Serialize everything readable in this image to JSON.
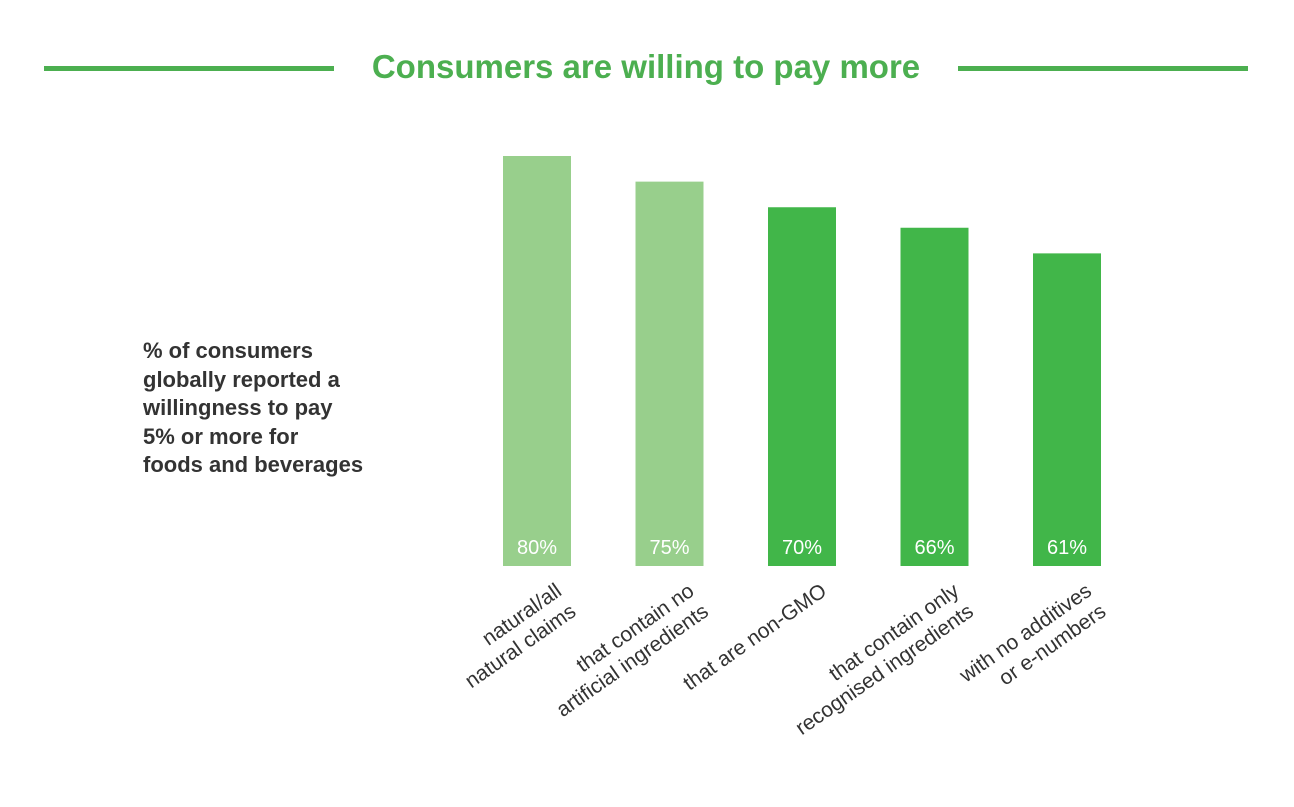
{
  "chart_data": {
    "type": "bar",
    "title": "Consumers are willing to pay more",
    "ylabel_lines": [
      "% of consumers",
      "globally reported a",
      "willingness to pay",
      "5% or more for",
      "foods and beverages"
    ],
    "categories": [
      [
        "natural/all",
        "natural claims"
      ],
      [
        "that contain no",
        "artificial ingredients"
      ],
      [
        "that are non-GMO"
      ],
      [
        "that contain only",
        "recognised ingredients"
      ],
      [
        "with no additives",
        "or e-numbers"
      ]
    ],
    "values": [
      80,
      75,
      70,
      66,
      61
    ],
    "value_labels": [
      "80%",
      "75%",
      "70%",
      "66%",
      "61%"
    ],
    "ylim": [
      0,
      100
    ],
    "bar_colors": [
      "#98cf8c",
      "#98cf8c",
      "#41b649",
      "#41b649",
      "#41b649"
    ],
    "title_color": "#4caf50",
    "grid": false,
    "legend": "none"
  }
}
